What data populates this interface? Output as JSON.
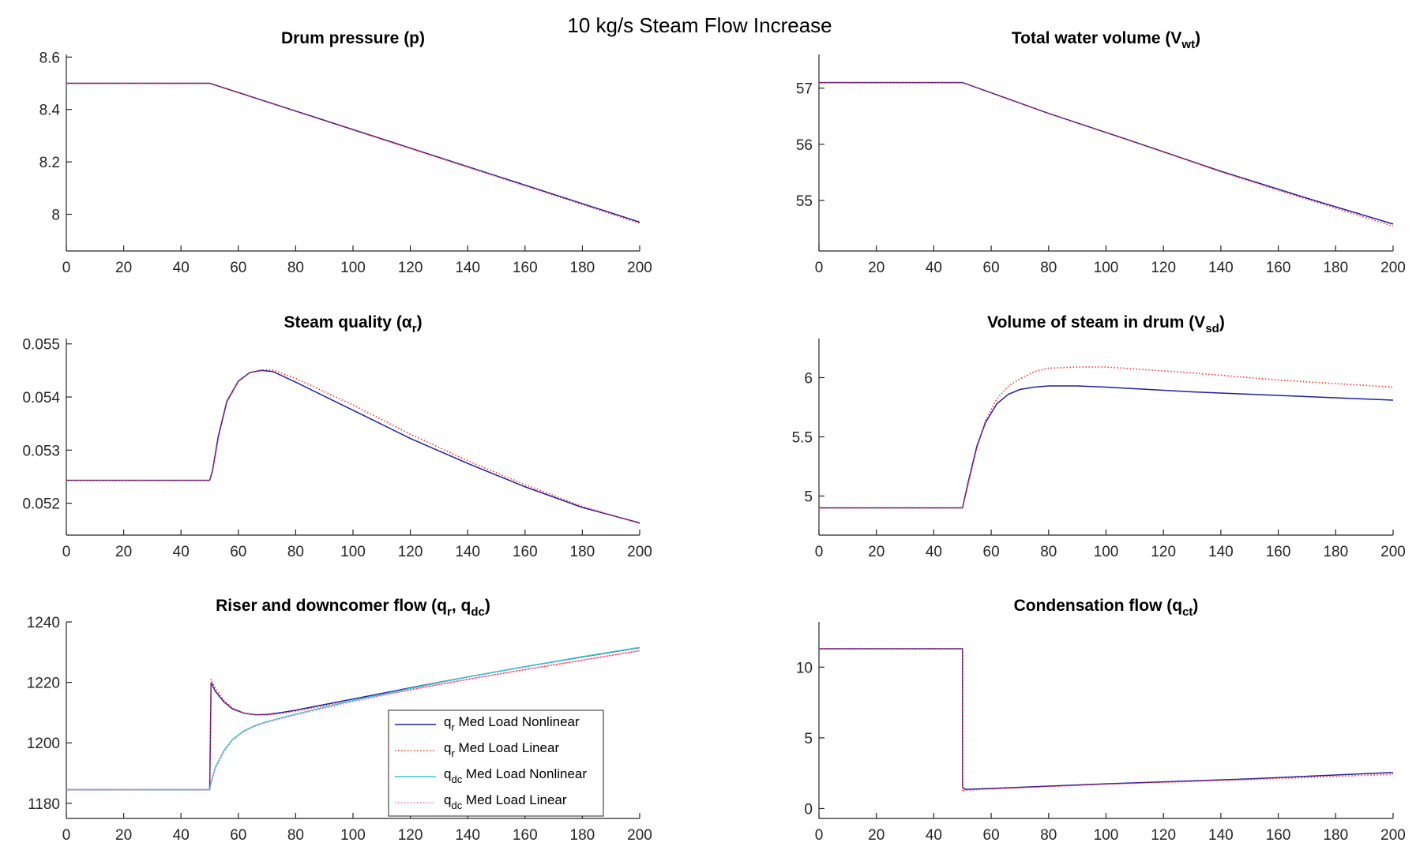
{
  "figure_title": "10 kg/s Steam Flow Increase",
  "colors": {
    "nonlinear": "#1f1fa0",
    "linear": "#ff2d2d",
    "qdc_nonlinear": "#33cccc",
    "qdc_linear": "#ff66cc"
  },
  "chart_data": [
    {
      "type": "line",
      "title_main": "Drum pressure (p)",
      "title_sub": "",
      "title_end": "",
      "xlim": [
        0,
        200
      ],
      "ylim": [
        7.86,
        8.61
      ],
      "xticks": [
        0,
        20,
        40,
        60,
        80,
        100,
        120,
        140,
        160,
        180,
        200
      ],
      "yticks": [
        8,
        8.2,
        8.4,
        8.6
      ],
      "ytick_labels": [
        "8",
        "8.2",
        "8.4",
        "8.6"
      ],
      "grid": false,
      "series": [
        {
          "style": "nonlinear",
          "x": [
            0,
            50,
            200
          ],
          "y": [
            8.5,
            8.5,
            7.97
          ]
        },
        {
          "style": "linear",
          "x": [
            0,
            50,
            200
          ],
          "y": [
            8.5,
            8.5,
            7.966
          ]
        }
      ]
    },
    {
      "type": "line",
      "title_main": "Total water volume (V",
      "title_sub": "wt",
      "title_end": ")",
      "xlim": [
        0,
        200
      ],
      "ylim": [
        54.1,
        57.6
      ],
      "xticks": [
        0,
        20,
        40,
        60,
        80,
        100,
        120,
        140,
        160,
        180,
        200
      ],
      "yticks": [
        55,
        56,
        57
      ],
      "ytick_labels": [
        "55",
        "56",
        "57"
      ],
      "grid": false,
      "series": [
        {
          "style": "nonlinear",
          "x": [
            0,
            50,
            80,
            110,
            140,
            170,
            200
          ],
          "y": [
            57.1,
            57.1,
            56.55,
            56.04,
            55.52,
            55.04,
            54.58
          ]
        },
        {
          "style": "linear",
          "x": [
            0,
            50,
            80,
            110,
            140,
            170,
            200
          ],
          "y": [
            57.1,
            57.1,
            56.55,
            56.04,
            55.51,
            55.02,
            54.54
          ]
        }
      ]
    },
    {
      "type": "line",
      "title_main": "Steam quality (α",
      "title_sub": "r",
      "title_end": ")",
      "xlim": [
        0,
        200
      ],
      "ylim": [
        0.0514,
        0.0551
      ],
      "xticks": [
        0,
        20,
        40,
        60,
        80,
        100,
        120,
        140,
        160,
        180,
        200
      ],
      "yticks": [
        0.052,
        0.053,
        0.054,
        0.055
      ],
      "ytick_labels": [
        "0.052",
        "0.053",
        "0.054",
        "0.055"
      ],
      "grid": false,
      "series": [
        {
          "style": "nonlinear",
          "x": [
            0,
            50,
            51,
            53,
            56,
            60,
            64,
            68,
            72,
            80,
            100,
            120,
            140,
            160,
            180,
            200
          ],
          "y": [
            0.05243,
            0.05243,
            0.05262,
            0.05326,
            0.05392,
            0.0543,
            0.05446,
            0.0545,
            0.05448,
            0.05428,
            0.05375,
            0.05322,
            0.05275,
            0.05231,
            0.05192,
            0.05163
          ]
        },
        {
          "style": "linear",
          "x": [
            0,
            50,
            51,
            53,
            56,
            60,
            64,
            68,
            72,
            80,
            100,
            120,
            140,
            160,
            180,
            200
          ],
          "y": [
            0.05243,
            0.05243,
            0.0526,
            0.05322,
            0.0539,
            0.05429,
            0.05446,
            0.05451,
            0.05451,
            0.05435,
            0.05385,
            0.0533,
            0.0528,
            0.05235,
            0.05194,
            0.05162
          ]
        }
      ]
    },
    {
      "type": "line",
      "title_main": "Volume of steam in drum (V",
      "title_sub": "sd",
      "title_end": ")",
      "xlim": [
        0,
        200
      ],
      "ylim": [
        4.67,
        6.33
      ],
      "xticks": [
        0,
        20,
        40,
        60,
        80,
        100,
        120,
        140,
        160,
        180,
        200
      ],
      "yticks": [
        5,
        5.5,
        6
      ],
      "ytick_labels": [
        "5",
        "5.5",
        "6"
      ],
      "grid": false,
      "series": [
        {
          "style": "nonlinear",
          "x": [
            0,
            50,
            52,
            55,
            58,
            62,
            66,
            70,
            75,
            80,
            90,
            100,
            130,
            160,
            200
          ],
          "y": [
            4.9,
            4.9,
            5.12,
            5.42,
            5.62,
            5.78,
            5.86,
            5.9,
            5.92,
            5.93,
            5.93,
            5.92,
            5.88,
            5.85,
            5.81
          ]
        },
        {
          "style": "linear",
          "x": [
            0,
            50,
            52,
            55,
            58,
            62,
            66,
            70,
            75,
            80,
            90,
            100,
            130,
            160,
            200
          ],
          "y": [
            4.9,
            4.9,
            5.1,
            5.4,
            5.64,
            5.82,
            5.93,
            5.99,
            6.05,
            6.08,
            6.09,
            6.09,
            6.04,
            5.98,
            5.92
          ]
        }
      ]
    },
    {
      "type": "line",
      "title_main": "Riser and downcomer flow (q",
      "title_sub": "r",
      "title_mid": ", q",
      "title_sub2": "dc",
      "title_end": ")",
      "xlim": [
        0,
        200
      ],
      "ylim": [
        1175,
        1240
      ],
      "xticks": [
        0,
        20,
        40,
        60,
        80,
        100,
        120,
        140,
        160,
        180,
        200
      ],
      "yticks": [
        1180,
        1200,
        1220,
        1240
      ],
      "ytick_labels": [
        "1180",
        "1200",
        "1220",
        "1240"
      ],
      "grid": false,
      "legend": {
        "position": "bottom-right",
        "entries": [
          {
            "sym": "q",
            "sub": "r",
            "label": "Med Load Nonlinear",
            "style": "nonlinear"
          },
          {
            "sym": "q",
            "sub": "r",
            "label": "Med Load Linear",
            "style": "linear"
          },
          {
            "sym": "q",
            "sub": "dc",
            "label": "Med Load Nonlinear",
            "style": "qdc_nonlinear"
          },
          {
            "sym": "q",
            "sub": "dc",
            "label": "Med Load Linear",
            "style": "qdc_linear"
          }
        ]
      },
      "series": [
        {
          "name": "qr Med Load Nonlinear",
          "style": "nonlinear",
          "x": [
            0,
            50,
            50.5,
            52,
            55,
            58,
            62,
            66,
            70,
            75,
            80,
            100,
            120,
            140,
            160,
            180,
            200
          ],
          "y": [
            1184.5,
            1184.5,
            1220,
            1217,
            1213.5,
            1211.2,
            1209.8,
            1209.3,
            1209.4,
            1210,
            1210.8,
            1214.5,
            1218.2,
            1221.8,
            1225.2,
            1228.4,
            1231.5
          ]
        },
        {
          "name": "qr Med Load Linear",
          "style": "linear",
          "x": [
            0,
            50,
            50.5,
            52,
            55,
            58,
            62,
            66,
            70,
            75,
            80,
            100,
            120,
            140,
            160,
            180,
            200
          ],
          "y": [
            1184.5,
            1184.5,
            1221,
            1218,
            1214,
            1211.5,
            1209.9,
            1209.3,
            1209.2,
            1209.7,
            1210.5,
            1214,
            1217.6,
            1221,
            1224.2,
            1227.3,
            1230.5
          ]
        },
        {
          "name": "qdc Med Load Nonlinear",
          "style": "qdc_nonlinear",
          "x": [
            0,
            50,
            50.5,
            52,
            55,
            58,
            62,
            66,
            70,
            75,
            80,
            100,
            120,
            140,
            160,
            180,
            200
          ],
          "y": [
            1184.5,
            1184.5,
            1187,
            1192,
            1197.5,
            1201.2,
            1204,
            1205.8,
            1207,
            1208.3,
            1209.5,
            1214,
            1218,
            1221.8,
            1225.2,
            1228.5,
            1231.6
          ]
        },
        {
          "name": "qdc Med Load Linear",
          "style": "qdc_linear",
          "x": [
            0,
            50,
            50.5,
            52,
            55,
            58,
            62,
            66,
            70,
            75,
            80,
            100,
            120,
            140,
            160,
            180,
            200
          ],
          "y": [
            1184.5,
            1184.5,
            1186.5,
            1191.5,
            1197,
            1200.8,
            1203.7,
            1205.5,
            1206.8,
            1208,
            1209.2,
            1213.6,
            1217.5,
            1221,
            1224.3,
            1227.4,
            1230.5
          ]
        }
      ]
    },
    {
      "type": "line",
      "title_main": "Condensation flow (q",
      "title_sub": "ct",
      "title_end": ")",
      "xlim": [
        0,
        200
      ],
      "ylim": [
        -0.7,
        13.2
      ],
      "xticks": [
        0,
        20,
        40,
        60,
        80,
        100,
        120,
        140,
        160,
        180,
        200
      ],
      "yticks": [
        0,
        5,
        10
      ],
      "ytick_labels": [
        "0",
        "5",
        "10"
      ],
      "grid": false,
      "series": [
        {
          "style": "nonlinear",
          "x": [
            0,
            50,
            50.01,
            51,
            100,
            150,
            200
          ],
          "y": [
            11.3,
            11.3,
            1.5,
            1.35,
            1.75,
            2.1,
            2.55
          ]
        },
        {
          "style": "linear",
          "x": [
            0,
            50,
            50.01,
            51,
            100,
            150,
            200
          ],
          "y": [
            11.3,
            11.3,
            1.2,
            1.3,
            1.72,
            2.05,
            2.42
          ]
        }
      ]
    }
  ]
}
